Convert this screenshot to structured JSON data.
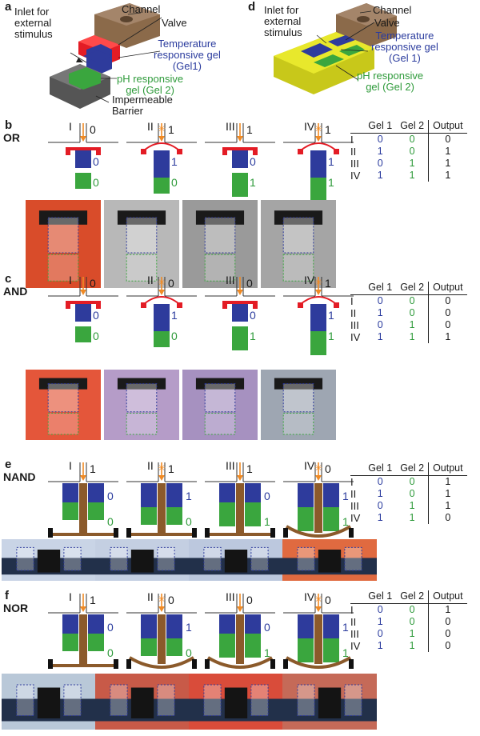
{
  "colors": {
    "gel1": "#2e3b9c",
    "gel2": "#3aa63e",
    "valve": "#e31c25",
    "barrier": "#555555",
    "channel": "#8b6a4a",
    "pillar": "#8b5a2b",
    "stimulus": "#f08a24",
    "yellow": "#e8e82c",
    "table_gel1": "#2b3c9e",
    "table_gel2": "#2e9a3a"
  },
  "panel_a": {
    "letter": "a",
    "inlet": "Inlet for\nexternal\nstimulus",
    "channel": "Channel",
    "valve": "Valve",
    "temp_gel": "Temperature\nresponsive gel\n(Gel1)",
    "ph_gel": "pH responsive\ngel (Gel 2)",
    "barrier": "Impermeable\nBarrier"
  },
  "panel_d": {
    "letter": "d",
    "inlet": "Inlet for\nexternal\nstimulus",
    "channel": "Channel",
    "valve": "Valve",
    "temp_gel": "Temperature\nresponsive gel\n(Gel 1)",
    "ph_gel": "pH responsive\ngel (Gel 2)"
  },
  "table_headers": [
    "Gel 1",
    "Gel 2",
    "Output"
  ],
  "row_labels": [
    "I",
    "II",
    "III",
    "IV"
  ],
  "panels": [
    {
      "letter": "b",
      "gate": "OR",
      "states": [
        {
          "label": "I",
          "out": "0",
          "g1": "0",
          "g2": "0"
        },
        {
          "label": "II",
          "out": "1",
          "g1": "1",
          "g2": "0"
        },
        {
          "label": "III",
          "out": "1",
          "g1": "0",
          "g2": "1"
        },
        {
          "label": "IV",
          "out": "1",
          "g1": "1",
          "g2": "1"
        }
      ],
      "table": [
        [
          "0",
          "0",
          "0"
        ],
        [
          "1",
          "0",
          "1"
        ],
        [
          "0",
          "1",
          "1"
        ],
        [
          "1",
          "1",
          "1"
        ]
      ]
    },
    {
      "letter": "c",
      "gate": "AND",
      "states": [
        {
          "label": "I",
          "out": "0",
          "g1": "0",
          "g2": "0"
        },
        {
          "label": "II",
          "out": "0",
          "g1": "1",
          "g2": "0"
        },
        {
          "label": "III",
          "out": "0",
          "g1": "0",
          "g2": "1"
        },
        {
          "label": "IV",
          "out": "1",
          "g1": "1",
          "g2": "1"
        }
      ],
      "table": [
        [
          "0",
          "0",
          "0"
        ],
        [
          "1",
          "0",
          "0"
        ],
        [
          "0",
          "1",
          "0"
        ],
        [
          "1",
          "1",
          "1"
        ]
      ]
    },
    {
      "letter": "e",
      "gate": "NAND",
      "states": [
        {
          "label": "I",
          "out": "1",
          "g1": "0",
          "g2": "0"
        },
        {
          "label": "II",
          "out": "1",
          "g1": "1",
          "g2": "0"
        },
        {
          "label": "III",
          "out": "1",
          "g1": "0",
          "g2": "1"
        },
        {
          "label": "IV",
          "out": "0",
          "g1": "1",
          "g2": "1"
        }
      ],
      "table": [
        [
          "0",
          "0",
          "1"
        ],
        [
          "1",
          "0",
          "1"
        ],
        [
          "0",
          "1",
          "1"
        ],
        [
          "1",
          "1",
          "0"
        ]
      ]
    },
    {
      "letter": "f",
      "gate": "NOR",
      "states": [
        {
          "label": "I",
          "out": "1",
          "g1": "0",
          "g2": "0"
        },
        {
          "label": "II",
          "out": "0",
          "g1": "1",
          "g2": "0"
        },
        {
          "label": "III",
          "out": "0",
          "g1": "0",
          "g2": "1"
        },
        {
          "label": "IV",
          "out": "0",
          "g1": "1",
          "g2": "1"
        }
      ],
      "table": [
        [
          "0",
          "0",
          "1"
        ],
        [
          "1",
          "0",
          "0"
        ],
        [
          "0",
          "1",
          "0"
        ],
        [
          "1",
          "1",
          "0"
        ]
      ]
    }
  ]
}
